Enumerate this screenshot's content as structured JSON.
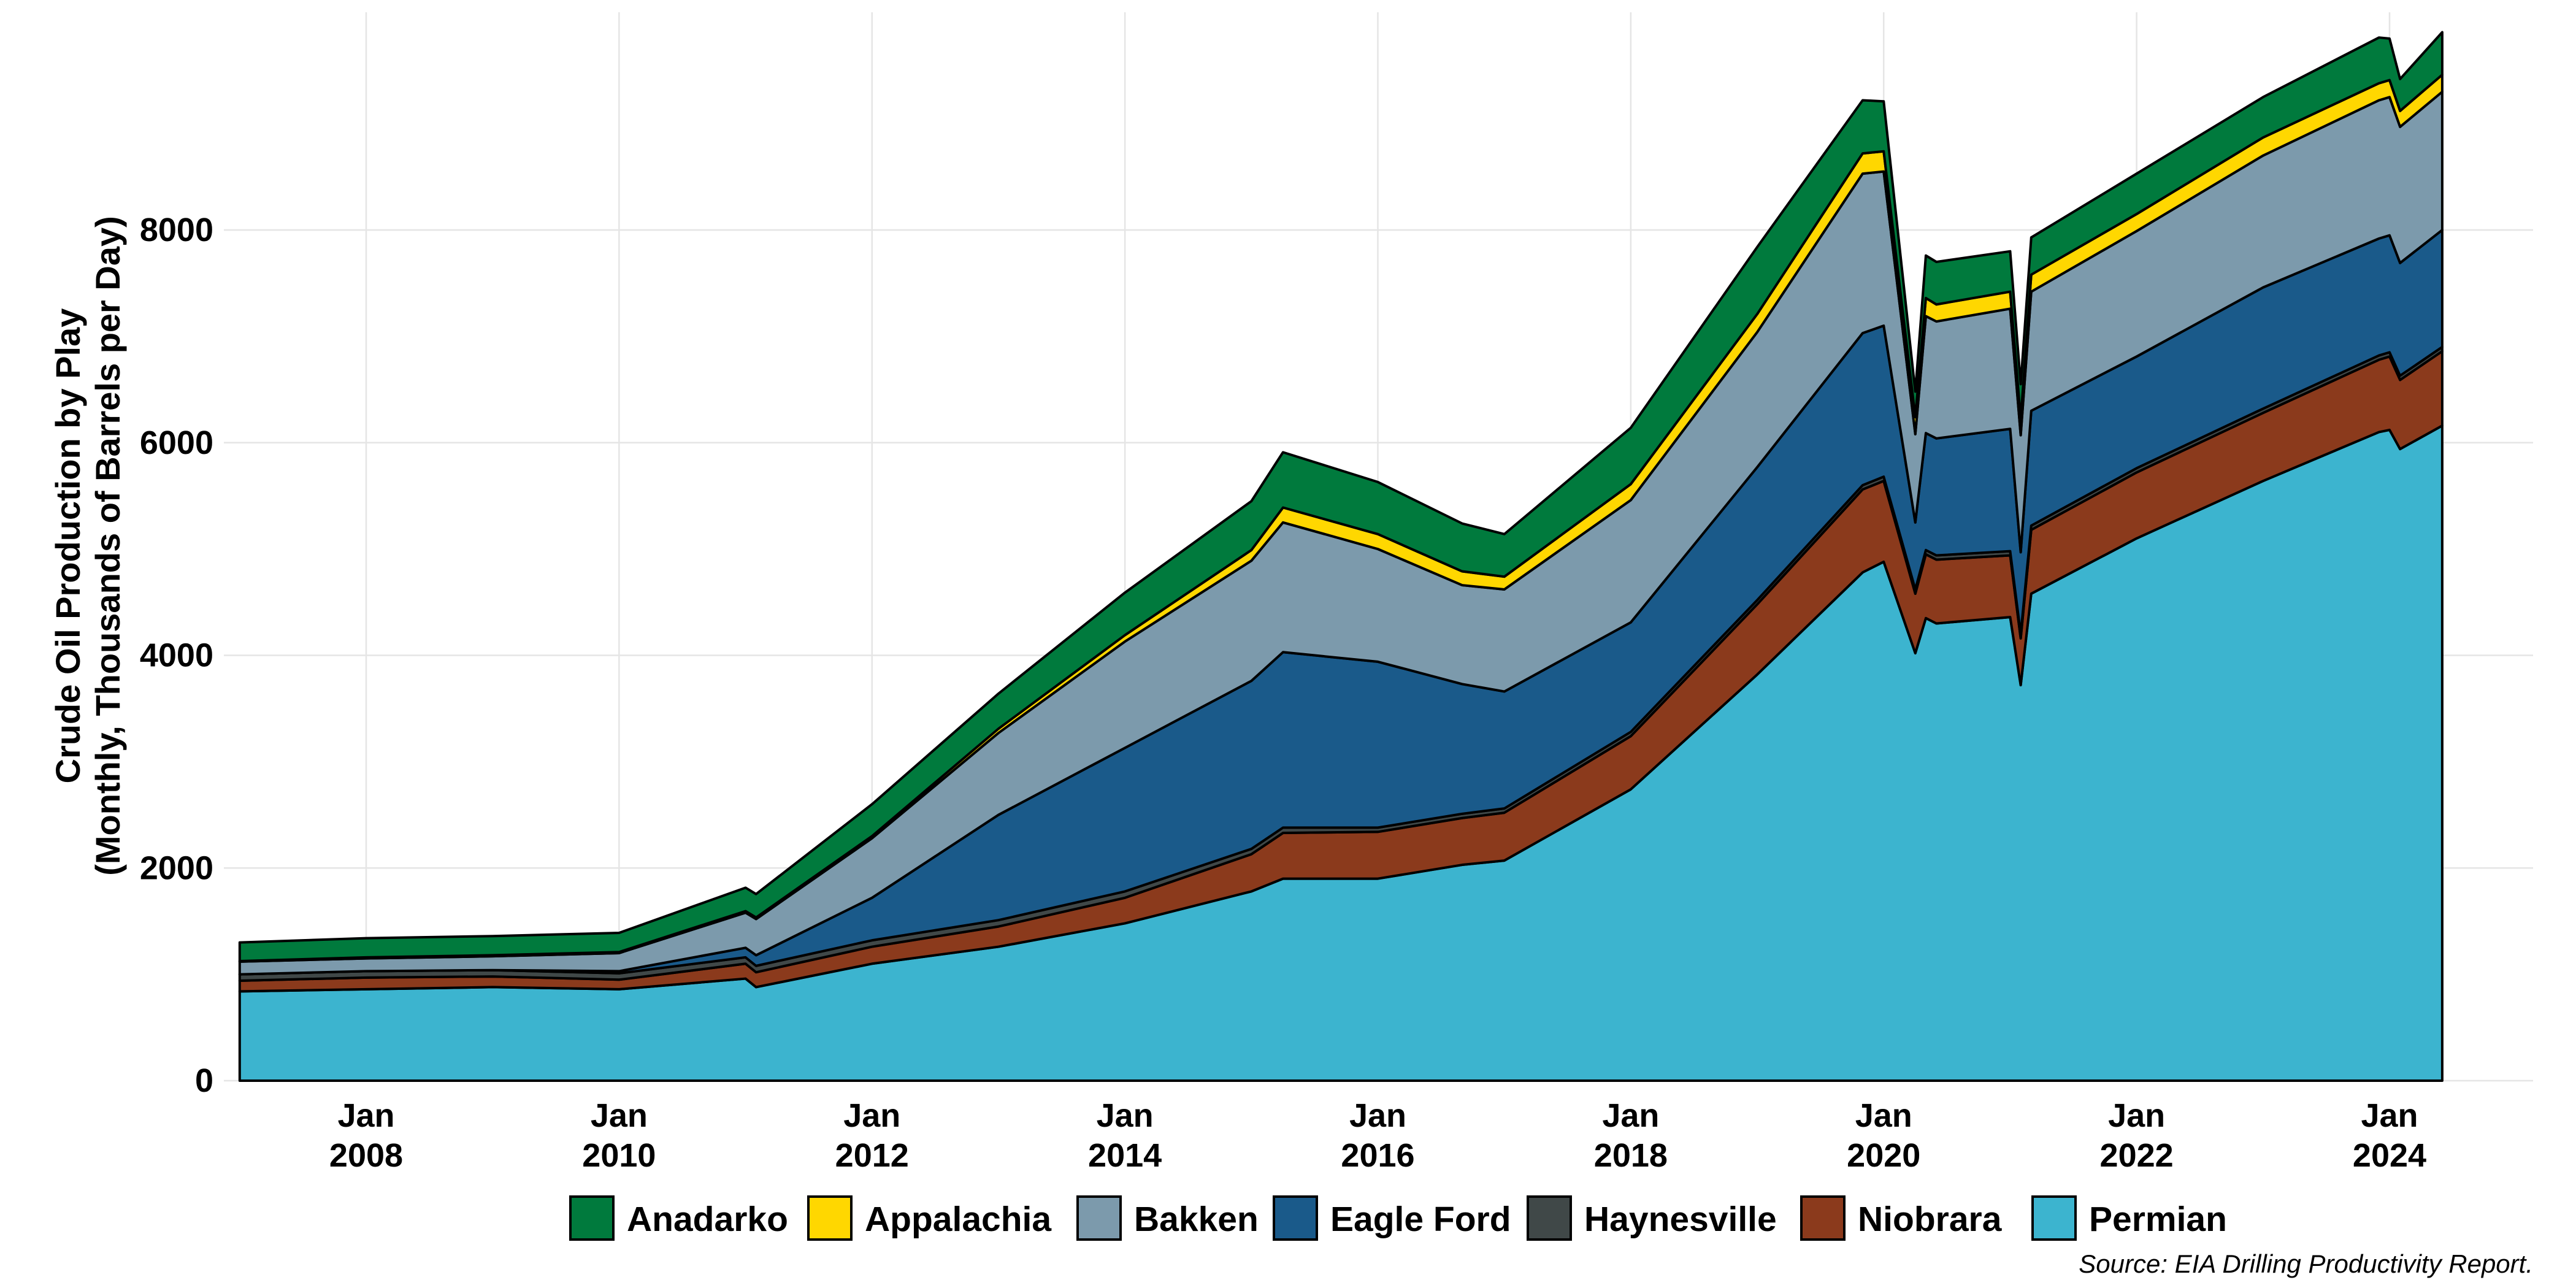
{
  "chart_data": {
    "type": "area",
    "stacked": true,
    "ylabel": "Crude Oil Production by Play\n(Monthly, Thousands of Barrels per Day)",
    "xlabel": "",
    "y_ticks": [
      "0",
      "2000",
      "4000",
      "6000",
      "8000"
    ],
    "x_ticks": [
      {
        "date": "2008-01",
        "line1": "Jan",
        "line2": "2008"
      },
      {
        "date": "2010-01",
        "line1": "Jan",
        "line2": "2010"
      },
      {
        "date": "2012-01",
        "line1": "Jan",
        "line2": "2012"
      },
      {
        "date": "2014-01",
        "line1": "Jan",
        "line2": "2014"
      },
      {
        "date": "2016-01",
        "line1": "Jan",
        "line2": "2016"
      },
      {
        "date": "2018-01",
        "line1": "Jan",
        "line2": "2018"
      },
      {
        "date": "2020-01",
        "line1": "Jan",
        "line2": "2020"
      },
      {
        "date": "2022-01",
        "line1": "Jan",
        "line2": "2022"
      },
      {
        "date": "2024-01",
        "line1": "Jan",
        "line2": "2024"
      }
    ],
    "xlim": [
      "2007-01",
      "2024-06"
    ],
    "ylim": [
      0,
      10000
    ],
    "grid": true,
    "legend_position": "bottom",
    "source": "Source: EIA Drilling Productivity Report.",
    "x": [
      "2007-01",
      "2008-01",
      "2009-01",
      "2010-01",
      "2011-01",
      "2011-02",
      "2012-01",
      "2013-01",
      "2014-01",
      "2015-01",
      "2015-04",
      "2016-01",
      "2016-09",
      "2017-01",
      "2018-01",
      "2019-01",
      "2019-11",
      "2020-01",
      "2020-04",
      "2020-05",
      "2020-06",
      "2021-01",
      "2021-02",
      "2021-03",
      "2022-01",
      "2023-01",
      "2023-12",
      "2024-01",
      "2024-02",
      "2024-06"
    ],
    "series": [
      {
        "name": "Permian",
        "color": "#3cb4cf",
        "values": [
          840,
          860,
          880,
          860,
          960,
          880,
          1100,
          1260,
          1480,
          1780,
          1900,
          1900,
          2030,
          2070,
          2740,
          3820,
          4780,
          4880,
          4020,
          4350,
          4300,
          4360,
          3720,
          4580,
          5100,
          5640,
          6100,
          6120,
          5940,
          6160
        ]
      },
      {
        "name": "Niobrara",
        "color": "#8b3a1c",
        "values": [
          100,
          110,
          100,
          90,
          140,
          140,
          160,
          190,
          240,
          350,
          430,
          440,
          440,
          450,
          500,
          660,
          780,
          760,
          560,
          600,
          600,
          580,
          440,
          600,
          620,
          640,
          680,
          690,
          650,
          700
        ]
      },
      {
        "name": "Haynesville",
        "color": "#404848",
        "values": [
          60,
          60,
          60,
          60,
          60,
          60,
          60,
          60,
          60,
          50,
          50,
          40,
          40,
          40,
          40,
          40,
          40,
          40,
          40,
          40,
          40,
          40,
          40,
          40,
          40,
          40,
          40,
          40,
          40,
          40
        ]
      },
      {
        "name": "Eagle Ford",
        "color": "#1a5a8a",
        "values": [
          0,
          0,
          0,
          20,
          90,
          100,
          400,
          990,
          1350,
          1580,
          1650,
          1560,
          1220,
          1100,
          1030,
          1250,
          1430,
          1420,
          630,
          1100,
          1100,
          1150,
          770,
          1080,
          1050,
          1140,
          1100,
          1100,
          1060,
          1100
        ]
      },
      {
        "name": "Bakken",
        "color": "#7c9aac",
        "values": [
          120,
          120,
          130,
          170,
          330,
          340,
          560,
          770,
          1000,
          1130,
          1220,
          1060,
          930,
          960,
          1150,
          1270,
          1500,
          1450,
          830,
          1100,
          1100,
          1130,
          1100,
          1120,
          1180,
          1240,
          1300,
          1300,
          1280,
          1300
        ]
      },
      {
        "name": "Appalachia",
        "color": "#ffd700",
        "values": [
          5,
          10,
          10,
          10,
          15,
          15,
          20,
          40,
          60,
          100,
          140,
          140,
          130,
          120,
          150,
          170,
          190,
          190,
          160,
          170,
          160,
          160,
          150,
          160,
          160,
          170,
          160,
          160,
          150,
          160
        ]
      },
      {
        "name": "Anadarko",
        "color": "#007a3d",
        "values": [
          175,
          180,
          180,
          180,
          220,
          220,
          300,
          330,
          400,
          460,
          520,
          490,
          450,
          400,
          530,
          630,
          500,
          470,
          240,
          400,
          400,
          380,
          330,
          350,
          380,
          380,
          430,
          390,
          300,
          400
        ]
      }
    ],
    "legend": [
      "Anadarko",
      "Appalachia",
      "Bakken",
      "Eagle Ford",
      "Haynesville",
      "Niobrara",
      "Permian"
    ]
  }
}
